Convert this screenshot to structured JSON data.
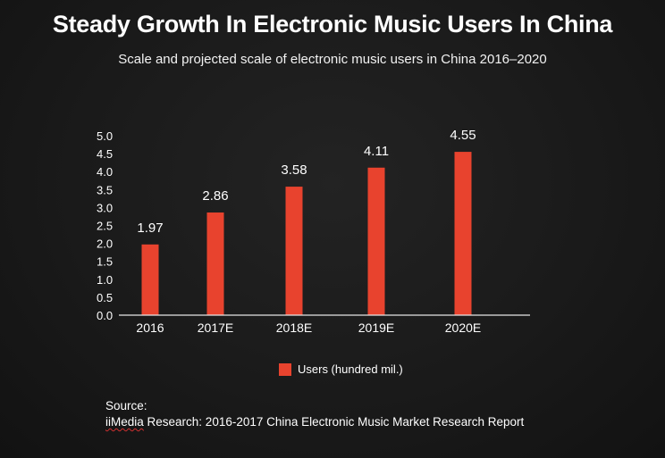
{
  "title": "Steady Growth In Electronic Music Users In China",
  "subtitle": "Scale and projected scale of electronic music users in China 2016–2020",
  "colors": {
    "bar": "#e8432e",
    "axis": "#e6e6e6",
    "text": "#ffffff"
  },
  "chart_data": {
    "type": "bar",
    "title": "Steady Growth In Electronic Music Users In China",
    "subtitle": "Scale and projected scale of electronic music users in China 2016–2020",
    "categories": [
      "2016",
      "2017E",
      "2018E",
      "2019E",
      "2020E"
    ],
    "series": [
      {
        "name": "Users (hundred mil.)",
        "values": [
          1.97,
          2.86,
          3.58,
          4.11,
          4.55
        ]
      }
    ],
    "data_labels": [
      "1.97",
      "2.86",
      "3.58",
      "4.11",
      "4.55"
    ],
    "xlabel": "",
    "ylabel": "",
    "ylim": [
      0,
      5.0
    ],
    "yticks": [
      "0.0",
      "0.5",
      "1.0",
      "1.5",
      "2.0",
      "2.5",
      "3.0",
      "3.5",
      "4.0",
      "4.5",
      "5.0"
    ],
    "grid": false,
    "legend": "bottom-center"
  },
  "legend": {
    "label": "Users (hundred mil.)"
  },
  "source": {
    "heading": "Source:",
    "org": "iiMedia",
    "rest": " Research: 2016-2017 China Electronic Music Market Research Report"
  }
}
